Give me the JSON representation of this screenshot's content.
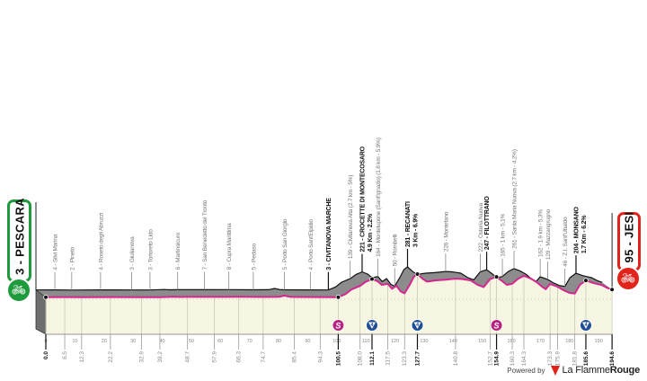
{
  "start": {
    "label": "3 - PESCARA",
    "color": "#1f9a3c",
    "icon": "bicycle-icon"
  },
  "finish": {
    "label": "95 - JESI",
    "color": "#e2231a",
    "icon": "bicycle-icon"
  },
  "footer": {
    "powered_by": "Powered by",
    "brand_a": "La Flamme",
    "brand_b": "Rouge",
    "brand_icon": "flame-icon"
  },
  "colors": {
    "route_line": "#d4268f",
    "profile_side": "#8c8c8c",
    "chart_bg": "#f6f6e2",
    "sprint": "#b8237f",
    "kom": "#1f4f95"
  },
  "chart_data": {
    "type": "area",
    "xlabel": "",
    "ylabel": "",
    "xlim": [
      0,
      194.6
    ],
    "xticks": [
      "0",
      "10",
      "20",
      "30",
      "40",
      "50",
      "60",
      "70",
      "80",
      "90",
      "100",
      "110",
      "120",
      "130",
      "140",
      "150",
      "160",
      "170",
      "180",
      "190"
    ],
    "points": [
      {
        "km": 0.0,
        "dist": "0.0",
        "elev": 3,
        "label": "",
        "bold_dist": true
      },
      {
        "km": 6.5,
        "dist": "6.5",
        "elev": 4,
        "label": "4 - Silvi Marina"
      },
      {
        "km": 12.3,
        "dist": "12.3",
        "elev": 2,
        "label": "2 - Pineto"
      },
      {
        "km": 22.2,
        "dist": "22.2",
        "elev": 4,
        "label": "4 - Roseto degli Abruzzi"
      },
      {
        "km": 32.9,
        "dist": "32.9",
        "elev": 3,
        "label": "3 - Giulianova"
      },
      {
        "km": 39.2,
        "dist": "39.2",
        "elev": 3,
        "label": "3 - Tortoreto Lido"
      },
      {
        "km": 48.7,
        "dist": "48.7",
        "elev": 6,
        "label": "6 - Martinsicuro"
      },
      {
        "km": 57.9,
        "dist": "57.9",
        "elev": 7,
        "label": "7 - San Benedetto del Tronto"
      },
      {
        "km": 66.3,
        "dist": "66.3",
        "elev": 8,
        "label": "8 - Cupra Marittima"
      },
      {
        "km": 74.7,
        "dist": "74.7",
        "elev": 5,
        "label": "5 - Pedaso"
      },
      {
        "km": 85.4,
        "dist": "85.4",
        "elev": 5,
        "label": "5 - Porto San Giorgio"
      },
      {
        "km": 94.3,
        "dist": "94.3",
        "elev": 4,
        "label": "4 - Porto Sant'Elpidio"
      },
      {
        "km": 100.5,
        "dist": "100.5",
        "elev": 3,
        "label": "3 - CIVITANOVA MARCHE",
        "bold": true,
        "bold_dist": true,
        "marker": "sprint"
      },
      {
        "km": 108.0,
        "dist": "108.0",
        "elev": 139,
        "label": "139 - Civitanova Alta (2.7 km - 5%)"
      },
      {
        "km": 112.1,
        "dist": "112.1",
        "elev": 221,
        "label": "221 - CROCETTE DI MONTECOSARO",
        "detail": "4.9 Km - 2.2%",
        "bold": true,
        "bold_dist": true,
        "marker": "kom",
        "category": "4"
      },
      {
        "km": 117.5,
        "dist": "117.5",
        "elev": 164,
        "label": "164 - Montelupone (Sant'Ignazio) (1.8 km - 5.9%)"
      },
      {
        "km": 123.3,
        "dist": "123.3",
        "elev": 50,
        "label": "50 - Rombelli"
      },
      {
        "km": 127.7,
        "dist": "127.7",
        "elev": 281,
        "label": "281 - RECANATI",
        "detail": "3 Km - 6.9%",
        "bold": true,
        "bold_dist": true,
        "marker": "kom",
        "category": "4"
      },
      {
        "km": 140.8,
        "dist": "140.8",
        "elev": 226,
        "label": "226 - Montefano"
      },
      {
        "km": 152.7,
        "dist": "152.7",
        "elev": 222,
        "label": "222 - Osteria Nuova"
      },
      {
        "km": 154.9,
        "dist": "154.9",
        "elev": 247,
        "label": "247 - FILOTTRANO",
        "bold": true,
        "bold_dist": true,
        "marker": "sprint"
      },
      {
        "km": 160.3,
        "dist": "160.3",
        "elev": 165,
        "label": "165 - 1 km - 5.1%"
      },
      {
        "km": 164.3,
        "dist": "164.3",
        "elev": 261,
        "label": "261 - Santa Maria Nuova (2.7 km - 4.2%)"
      },
      {
        "km": 173.3,
        "dist": "173.3",
        "elev": 162,
        "label": "162 - 1.9 km - 5.3%"
      },
      {
        "km": 175.9,
        "dist": "175.9",
        "elev": 129,
        "label": "129 - Mazzangrugno"
      },
      {
        "km": 181.8,
        "dist": "181.8",
        "elev": 46,
        "label": "46 - Z.I. Sant'Ubaldo"
      },
      {
        "km": 185.6,
        "dist": "185.6",
        "elev": 204,
        "label": "204 - MONSANO",
        "detail": "1.7 Km - 6.2%",
        "bold": true,
        "bold_dist": true,
        "marker": "kom",
        "category": "4"
      },
      {
        "km": 194.6,
        "dist": "194.6",
        "elev": 95,
        "label": "",
        "bold_dist": true
      }
    ],
    "profile": [
      [
        0,
        3
      ],
      [
        6.5,
        4
      ],
      [
        12.3,
        2
      ],
      [
        22.2,
        4
      ],
      [
        32.9,
        3
      ],
      [
        39.2,
        3
      ],
      [
        44,
        9
      ],
      [
        46,
        5
      ],
      [
        48.7,
        6
      ],
      [
        57.9,
        7
      ],
      [
        66.3,
        8
      ],
      [
        74.7,
        5
      ],
      [
        80,
        6
      ],
      [
        82,
        22
      ],
      [
        84,
        6
      ],
      [
        85.4,
        5
      ],
      [
        94.3,
        4
      ],
      [
        100.5,
        3
      ],
      [
        103,
        40
      ],
      [
        105,
        95
      ],
      [
        108,
        139
      ],
      [
        110,
        190
      ],
      [
        112.1,
        221
      ],
      [
        114,
        195
      ],
      [
        115.5,
        150
      ],
      [
        117.5,
        164
      ],
      [
        119,
        105
      ],
      [
        120.5,
        140
      ],
      [
        122,
        70
      ],
      [
        123.3,
        50
      ],
      [
        125,
        150
      ],
      [
        126.5,
        250
      ],
      [
        127.7,
        281
      ],
      [
        129.5,
        225
      ],
      [
        131,
        190
      ],
      [
        134,
        205
      ],
      [
        137,
        212
      ],
      [
        140.8,
        226
      ],
      [
        143,
        222
      ],
      [
        146,
        205
      ],
      [
        148.5,
        150
      ],
      [
        150.5,
        125
      ],
      [
        152.7,
        222
      ],
      [
        154.9,
        247
      ],
      [
        156.5,
        205
      ],
      [
        158.5,
        150
      ],
      [
        160.3,
        165
      ],
      [
        162.3,
        225
      ],
      [
        164.3,
        261
      ],
      [
        166.5,
        230
      ],
      [
        168.5,
        190
      ],
      [
        170.5,
        130
      ],
      [
        171.8,
        100
      ],
      [
        173.3,
        162
      ],
      [
        175.9,
        129
      ],
      [
        178,
        85
      ],
      [
        180,
        55
      ],
      [
        181.8,
        46
      ],
      [
        183.5,
        150
      ],
      [
        185.6,
        204
      ],
      [
        188,
        175
      ],
      [
        191,
        150
      ],
      [
        193,
        115
      ],
      [
        194.6,
        95
      ]
    ]
  }
}
